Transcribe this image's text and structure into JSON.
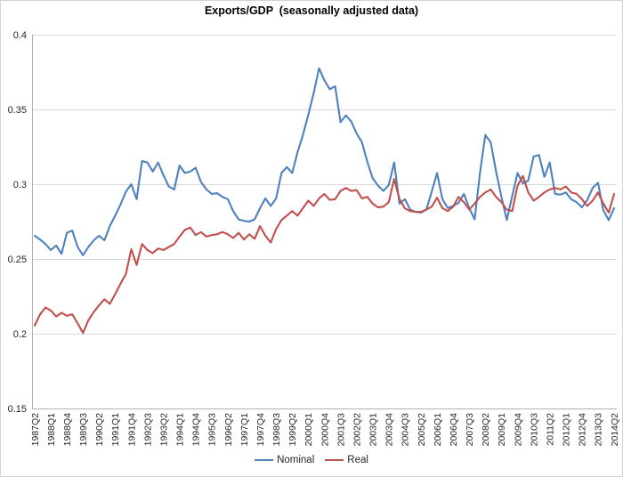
{
  "chart": {
    "title": "Exports/GDP  (seasonally adjusted data)",
    "legend": [
      {
        "label": "Nominal",
        "color": "#4F81BD"
      },
      {
        "label": "Real",
        "color": "#C0504D"
      }
    ]
  },
  "chart_data": {
    "type": "line",
    "title": "Exports/GDP  (seasonally adjusted data)",
    "xlabel": "",
    "ylabel": "",
    "ylim": [
      0.15,
      0.4
    ],
    "yticks": [
      0.4,
      0.35,
      0.3,
      0.25,
      0.2,
      0.15
    ],
    "ytick_labels": [
      "0.4",
      "0.35",
      "0.3",
      "0.25",
      "0.2",
      "0.15"
    ],
    "x_tick_step": 3,
    "grid": "horizontal",
    "legend_position": "bottom-center",
    "grid_color": "#D9D9D9",
    "axis_color": "#B3B3B3",
    "text_color": "#262626",
    "categories": [
      "1987Q2",
      "1987Q3",
      "1987Q4",
      "1988Q1",
      "1988Q2",
      "1988Q3",
      "1988Q4",
      "1989Q1",
      "1989Q2",
      "1989Q3",
      "1989Q4",
      "1990Q1",
      "1990Q2",
      "1990Q3",
      "1990Q4",
      "1991Q1",
      "1991Q2",
      "1991Q3",
      "1991Q4",
      "1992Q1",
      "1992Q2",
      "1992Q3",
      "1992Q4",
      "1993Q1",
      "1993Q2",
      "1993Q3",
      "1993Q4",
      "1994Q1",
      "1994Q2",
      "1994Q3",
      "1994Q4",
      "1995Q1",
      "1995Q2",
      "1995Q3",
      "1995Q4",
      "1996Q1",
      "1996Q2",
      "1996Q3",
      "1996Q4",
      "1997Q1",
      "1997Q2",
      "1997Q3",
      "1997Q4",
      "1998Q1",
      "1998Q2",
      "1998Q3",
      "1998Q4",
      "1999Q1",
      "1999Q2",
      "1999Q3",
      "1999Q4",
      "2000Q1",
      "2000Q2",
      "2000Q3",
      "2000Q4",
      "2001Q1",
      "2001Q2",
      "2001Q3",
      "2001Q4",
      "2002Q1",
      "2002Q2",
      "2002Q3",
      "2002Q4",
      "2003Q1",
      "2003Q2",
      "2003Q3",
      "2003Q4",
      "2004Q1",
      "2004Q2",
      "2004Q3",
      "2004Q4",
      "2005Q1",
      "2005Q2",
      "2005Q3",
      "2005Q4",
      "2006Q1",
      "2006Q2",
      "2006Q3",
      "2006Q4",
      "2007Q1",
      "2007Q2",
      "2007Q3",
      "2007Q4",
      "2008Q1",
      "2008Q2",
      "2008Q3",
      "2008Q4",
      "2009Q1",
      "2009Q2",
      "2009Q3",
      "2009Q4",
      "2010Q1",
      "2010Q2",
      "2010Q3",
      "2010Q4",
      "2011Q1",
      "2011Q2",
      "2011Q3",
      "2011Q4",
      "2012Q1",
      "2012Q2",
      "2012Q3",
      "2012Q4",
      "2013Q1",
      "2013Q2",
      "2013Q3",
      "2013Q4",
      "2014Q1",
      "2014Q2"
    ],
    "series": [
      {
        "name": "Nominal",
        "color": "#4F81BD",
        "values": [
          0.2655,
          0.263,
          0.26,
          0.256,
          0.259,
          0.2535,
          0.2675,
          0.269,
          0.258,
          0.2525,
          0.258,
          0.2625,
          0.2655,
          0.2625,
          0.272,
          0.279,
          0.2865,
          0.295,
          0.3,
          0.29,
          0.3155,
          0.3145,
          0.3085,
          0.3145,
          0.306,
          0.2985,
          0.2965,
          0.3125,
          0.3075,
          0.3085,
          0.311,
          0.3015,
          0.2965,
          0.2935,
          0.294,
          0.2915,
          0.29,
          0.282,
          0.2765,
          0.2755,
          0.275,
          0.2765,
          0.284,
          0.2905,
          0.2855,
          0.2905,
          0.3075,
          0.3115,
          0.3075,
          0.3215,
          0.333,
          0.3465,
          0.361,
          0.3775,
          0.3695,
          0.3635,
          0.3655,
          0.3415,
          0.346,
          0.342,
          0.334,
          0.328,
          0.315,
          0.304,
          0.299,
          0.2955,
          0.2995,
          0.3145,
          0.287,
          0.29,
          0.283,
          0.2815,
          0.281,
          0.283,
          0.295,
          0.3075,
          0.29,
          0.284,
          0.2855,
          0.2875,
          0.2935,
          0.284,
          0.2765,
          0.3075,
          0.333,
          0.328,
          0.3085,
          0.2915,
          0.276,
          0.292,
          0.3075,
          0.3005,
          0.3025,
          0.3185,
          0.3195,
          0.305,
          0.3145,
          0.2935,
          0.293,
          0.2945,
          0.29,
          0.288,
          0.2845,
          0.2895,
          0.2975,
          0.301,
          0.2825,
          0.276,
          0.284
        ]
      },
      {
        "name": "Real",
        "color": "#C0504D",
        "values": [
          0.2055,
          0.213,
          0.2175,
          0.2155,
          0.2115,
          0.214,
          0.212,
          0.213,
          0.207,
          0.2005,
          0.209,
          0.2145,
          0.219,
          0.223,
          0.22,
          0.2265,
          0.2335,
          0.24,
          0.2565,
          0.246,
          0.26,
          0.256,
          0.254,
          0.257,
          0.256,
          0.258,
          0.26,
          0.265,
          0.2695,
          0.271,
          0.266,
          0.268,
          0.265,
          0.266,
          0.2665,
          0.268,
          0.2665,
          0.264,
          0.2675,
          0.263,
          0.2665,
          0.2635,
          0.272,
          0.2655,
          0.261,
          0.27,
          0.276,
          0.279,
          0.282,
          0.279,
          0.284,
          0.289,
          0.2855,
          0.2905,
          0.2935,
          0.2895,
          0.29,
          0.2955,
          0.2975,
          0.2955,
          0.296,
          0.2905,
          0.2915,
          0.287,
          0.2845,
          0.285,
          0.288,
          0.3035,
          0.29,
          0.2838,
          0.282,
          0.2815,
          0.2815,
          0.283,
          0.285,
          0.291,
          0.284,
          0.282,
          0.285,
          0.2915,
          0.288,
          0.283,
          0.287,
          0.2915,
          0.2945,
          0.2965,
          0.2915,
          0.288,
          0.283,
          0.282,
          0.299,
          0.3055,
          0.2945,
          0.289,
          0.2915,
          0.2945,
          0.2965,
          0.2975,
          0.2965,
          0.2985,
          0.2945,
          0.2935,
          0.29,
          0.2855,
          0.289,
          0.2945,
          0.287,
          0.281,
          0.2935
        ]
      }
    ]
  }
}
